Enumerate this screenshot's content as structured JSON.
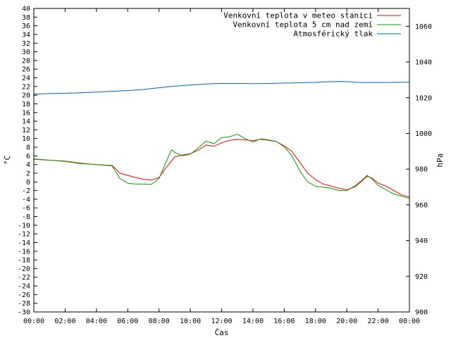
{
  "chart_data": {
    "type": "line",
    "xlabel": "Čas",
    "ylabel_left": "°C",
    "ylabel_right": "hPa",
    "x_ticks": [
      "00:00",
      "02:00",
      "04:00",
      "06:00",
      "08:00",
      "10:00",
      "12:00",
      "14:00",
      "16:00",
      "18:00",
      "20:00",
      "22:00",
      "00:00"
    ],
    "y_left_range": [
      -30,
      40
    ],
    "y_left_step": 2,
    "y_right_range": [
      900,
      1070
    ],
    "y_right_ticks": [
      900,
      920,
      940,
      960,
      980,
      1000,
      1020,
      1040,
      1060
    ],
    "x_range_hours": [
      0,
      24
    ],
    "legend_position": "top-right",
    "series": [
      {
        "name": "Venkovní teplota v meteo stanici",
        "color": "#ff0000",
        "axis": "left",
        "x": [
          0,
          1,
          2,
          3,
          4,
          5,
          5.5,
          6,
          6.5,
          7,
          7.5,
          8,
          8.5,
          9,
          9.5,
          10,
          10.5,
          11,
          11.5,
          12,
          12.5,
          13,
          13.5,
          14,
          14.5,
          15,
          15.5,
          16,
          16.5,
          17,
          17.5,
          18,
          18.5,
          19,
          19.5,
          20,
          20.5,
          21,
          21.3,
          21.6,
          22,
          22.5,
          23,
          23.5,
          24
        ],
        "values": [
          5.2,
          5.0,
          4.8,
          4.3,
          4.0,
          3.8,
          2.0,
          1.5,
          1.0,
          0.6,
          0.4,
          1.0,
          3.5,
          5.8,
          6.2,
          6.5,
          7.3,
          8.5,
          8.2,
          9.0,
          9.6,
          9.8,
          9.7,
          9.5,
          9.8,
          9.6,
          9.3,
          8.3,
          7.0,
          4.5,
          2.0,
          0.5,
          -0.5,
          -1.0,
          -1.5,
          -1.8,
          -1.2,
          0.3,
          1.3,
          0.9,
          -0.3,
          -1.0,
          -2.0,
          -3.0,
          -3.5
        ]
      },
      {
        "name": "Venkovní teplota 5 cm nad zemí",
        "color": "#00a000",
        "axis": "left",
        "x": [
          0,
          1,
          2,
          3,
          4,
          5,
          5.5,
          6,
          6.5,
          7,
          7.5,
          8,
          8.5,
          8.8,
          9,
          9.5,
          10,
          10.5,
          11,
          11.5,
          12,
          12.5,
          13,
          13.5,
          14,
          14.5,
          15,
          15.5,
          16,
          16.5,
          17,
          17.5,
          18,
          18.5,
          19,
          19.5,
          20,
          20.5,
          21,
          21.3,
          21.6,
          22,
          22.5,
          23,
          23.5,
          24
        ],
        "values": [
          5.3,
          5.0,
          4.7,
          4.2,
          4.0,
          3.7,
          0.8,
          -0.3,
          -0.5,
          -0.5,
          -0.6,
          0.8,
          5.0,
          7.4,
          6.8,
          6.0,
          6.4,
          7.8,
          9.4,
          8.8,
          10.2,
          10.4,
          11.0,
          10.0,
          9.2,
          9.9,
          9.7,
          9.3,
          8.1,
          6.0,
          2.5,
          0.0,
          -1.0,
          -1.2,
          -1.5,
          -2.0,
          -2.0,
          -1.0,
          0.5,
          1.5,
          0.7,
          -0.8,
          -1.8,
          -2.8,
          -3.3,
          -3.8
        ]
      },
      {
        "name": "Atmosférický tlak",
        "color": "#0060c0",
        "axis": "right",
        "x": [
          0,
          1,
          2,
          3,
          4,
          5,
          6,
          7,
          8,
          9,
          10,
          11,
          12,
          13,
          14,
          15,
          16,
          17,
          18,
          19,
          19.5,
          20,
          20.5,
          21,
          22,
          23,
          24
        ],
        "values": [
          1022.0,
          1022.3,
          1022.5,
          1022.8,
          1023.2,
          1023.6,
          1024.0,
          1024.6,
          1025.6,
          1026.5,
          1027.1,
          1027.7,
          1028.0,
          1028.0,
          1027.9,
          1028.0,
          1028.2,
          1028.4,
          1028.6,
          1029.0,
          1029.1,
          1029.0,
          1028.7,
          1028.5,
          1028.5,
          1028.6,
          1028.7
        ]
      }
    ]
  }
}
